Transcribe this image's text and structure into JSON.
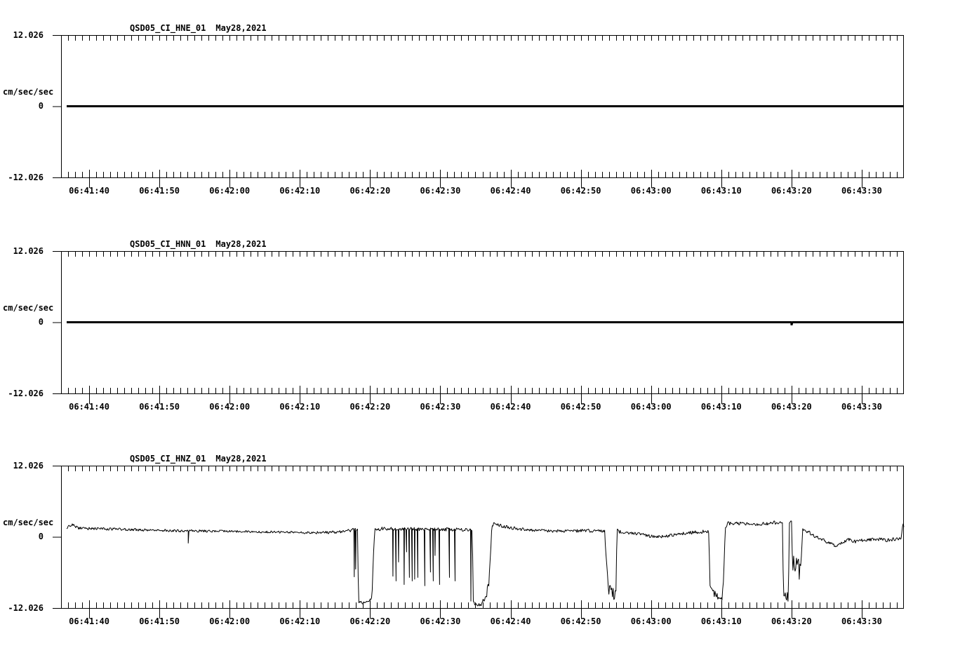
{
  "chart_data": {
    "type": "line",
    "background": "#ffffff",
    "trace_color": "#000000",
    "y_axis": {
      "max_label": "12.026",
      "zero_label": "0",
      "min_label": "-12.026",
      "units": "cm/sec/sec",
      "ylim": [
        -12.026,
        12.026
      ]
    },
    "x_axis": {
      "start_time": "06:41:36",
      "end_time": "06:43:36",
      "duration_s": 120,
      "first_major_offset_s": 4,
      "major_interval_s": 10,
      "minor_interval_s": 1,
      "tick_labels": [
        "06:41:40",
        "06:41:50",
        "06:42:00",
        "06:42:10",
        "06:42:20",
        "06:42:30",
        "06:42:40",
        "06:42:50",
        "06:43:00",
        "06:43:10",
        "06:43:20",
        "06:43:30"
      ]
    },
    "channels": [
      {
        "station": "QSD05_CI_HNE_01",
        "date": "May28,2021",
        "trace": {
          "kind": "flat",
          "stroke": 3,
          "start_t": 0.8,
          "envelope": [
            [
              0.8,
              0,
              0
            ],
            [
              120,
              0,
              0
            ]
          ],
          "spikes": []
        }
      },
      {
        "station": "QSD05_CI_HNN_01",
        "date": "May28,2021",
        "trace": {
          "kind": "flat",
          "stroke": 3,
          "start_t": 0.8,
          "envelope": [
            [
              0.8,
              0,
              0
            ],
            [
              120,
              0,
              0
            ]
          ],
          "spikes": [
            [
              104.0,
              -0.5
            ]
          ]
        }
      },
      {
        "station": "QSD05_CI_HNZ_01",
        "date": "May28,2021",
        "trace": {
          "kind": "noisy",
          "stroke": 1,
          "start_t": 0.8,
          "envelope": [
            [
              0.8,
              1.5,
              0.25
            ],
            [
              1.6,
              2.0,
              0.3
            ],
            [
              2.4,
              1.5,
              0.25
            ],
            [
              6,
              1.35,
              0.22
            ],
            [
              12,
              1.15,
              0.22
            ],
            [
              18,
              1.0,
              0.22
            ],
            [
              24,
              0.95,
              0.2
            ],
            [
              30,
              0.8,
              0.2
            ],
            [
              36,
              0.7,
              0.2
            ],
            [
              40,
              0.85,
              0.28
            ],
            [
              41.3,
              1.1,
              0.35
            ],
            [
              42.2,
              1.2,
              0.3
            ],
            [
              42.35,
              -10.9,
              0.25
            ],
            [
              43.0,
              -11.2,
              0.2
            ],
            [
              44.0,
              -10.6,
              0.25
            ],
            [
              44.25,
              -10.2,
              0.3
            ],
            [
              44.5,
              -3.0,
              0.6
            ],
            [
              44.65,
              1.35,
              0.35
            ],
            [
              47,
              1.35,
              0.3
            ],
            [
              52,
              1.3,
              0.3
            ],
            [
              58.2,
              1.2,
              0.3
            ],
            [
              58.55,
              1.1,
              0.3
            ],
            [
              58.7,
              -10.8,
              0.3
            ],
            [
              59.0,
              -11.5,
              0.25
            ],
            [
              60.0,
              -11.3,
              0.45
            ],
            [
              60.9,
              -8.5,
              1.0
            ],
            [
              61.3,
              1.2,
              0.5
            ],
            [
              61.55,
              2.1,
              0.35
            ],
            [
              62.5,
              1.9,
              0.3
            ],
            [
              64,
              1.5,
              0.28
            ],
            [
              67,
              1.1,
              0.25
            ],
            [
              71,
              0.95,
              0.25
            ],
            [
              75,
              1.05,
              0.28
            ],
            [
              77.4,
              0.95,
              0.3
            ],
            [
              77.65,
              -4.5,
              0.5
            ],
            [
              77.9,
              -8.5,
              1.3
            ],
            [
              78.6,
              -9.3,
              1.3
            ],
            [
              79.0,
              -9.8,
              0.9
            ],
            [
              79.15,
              1.0,
              0.4
            ],
            [
              80,
              0.75,
              0.28
            ],
            [
              82,
              0.55,
              0.25
            ],
            [
              84,
              0.1,
              0.25
            ],
            [
              86,
              0.05,
              0.25
            ],
            [
              88,
              0.5,
              0.28
            ],
            [
              90,
              0.75,
              0.3
            ],
            [
              92.2,
              0.95,
              0.3
            ],
            [
              92.4,
              -8.0,
              0.8
            ],
            [
              92.8,
              -9.5,
              0.9
            ],
            [
              93.5,
              -10.1,
              0.5
            ],
            [
              94.1,
              -10.3,
              0.5
            ],
            [
              94.35,
              -7.5,
              1.6
            ],
            [
              94.55,
              2.0,
              0.5
            ],
            [
              95.2,
              2.3,
              0.35
            ],
            [
              98,
              2.2,
              0.35
            ],
            [
              101,
              2.3,
              0.35
            ],
            [
              102.7,
              2.4,
              0.35
            ],
            [
              102.85,
              -9.2,
              0.6
            ],
            [
              103.1,
              -9.8,
              0.9
            ],
            [
              103.55,
              -10.0,
              1.0
            ],
            [
              103.7,
              2.6,
              0.4
            ],
            [
              104.0,
              2.8,
              0.4
            ],
            [
              104.15,
              -5.5,
              1.9
            ],
            [
              104.6,
              -4.5,
              2.3
            ],
            [
              105.1,
              -5.5,
              1.9
            ],
            [
              105.45,
              -2.0,
              1.1
            ],
            [
              105.6,
              1.3,
              0.4
            ],
            [
              106.2,
              1.0,
              0.35
            ],
            [
              107,
              0.3,
              0.3
            ],
            [
              108,
              -0.2,
              0.3
            ],
            [
              109.3,
              -1.1,
              0.3
            ],
            [
              110.3,
              -1.5,
              0.3
            ],
            [
              111.2,
              -1.0,
              0.3
            ],
            [
              112.2,
              -0.5,
              0.35
            ],
            [
              113,
              -0.8,
              0.3
            ],
            [
              114.5,
              -0.55,
              0.3
            ],
            [
              116,
              -0.4,
              0.35
            ],
            [
              117.5,
              -0.6,
              0.35
            ],
            [
              119,
              -0.35,
              0.3
            ],
            [
              119.6,
              -0.2,
              0.3
            ],
            [
              119.85,
              2.3,
              0.2
            ],
            [
              120,
              1.6,
              0.2
            ]
          ],
          "spikes": [
            [
              18.1,
              -1.1
            ],
            [
              41.75,
              -6.8
            ],
            [
              41.95,
              -5.5
            ],
            [
              47.25,
              -6.7
            ],
            [
              47.7,
              -7.5
            ],
            [
              48.05,
              -4.3
            ],
            [
              48.85,
              -8.1
            ],
            [
              49.2,
              -2.6
            ],
            [
              49.6,
              -6.9
            ],
            [
              50.0,
              -7.5
            ],
            [
              50.35,
              -7.2
            ],
            [
              50.8,
              -6.9
            ],
            [
              51.8,
              -8.3
            ],
            [
              52.6,
              -6.0
            ],
            [
              53.0,
              -7.5
            ],
            [
              53.25,
              -3.2
            ],
            [
              53.9,
              -8.1
            ],
            [
              55.3,
              -6.9
            ],
            [
              56.1,
              -7.5
            ],
            [
              58.35,
              -10.9
            ]
          ]
        }
      }
    ]
  }
}
